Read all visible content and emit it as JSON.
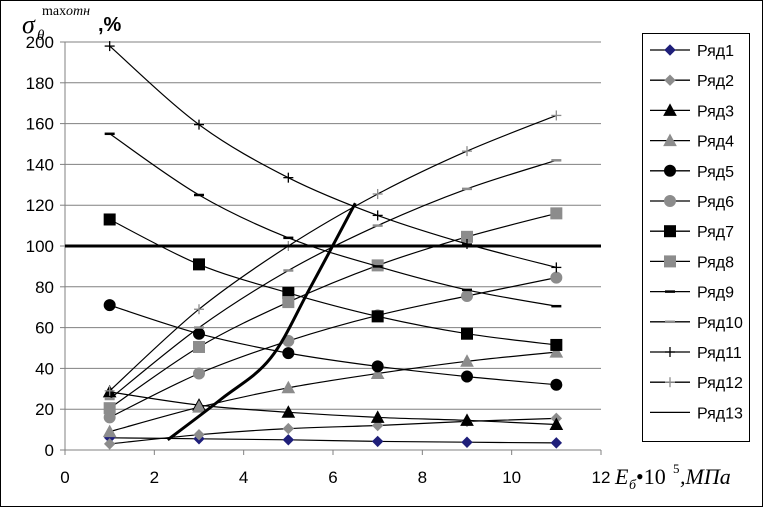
{
  "chart_data": {
    "type": "line",
    "ylabel": {
      "symbol": "σ",
      "subscript": "θ",
      "superscript_upright": "max",
      "superscript_italic": "отн",
      "unit": ",%"
    },
    "xlabel": {
      "symbol": "E",
      "subscript": "б",
      "multiplier": "•10",
      "exponent": "5",
      "unit": ",МПа"
    },
    "xlim": [
      0,
      12
    ],
    "ylim": [
      0,
      200
    ],
    "x_ticks": [
      "0",
      "2",
      "4",
      "6",
      "8",
      "10",
      "12"
    ],
    "y_ticks": [
      "0",
      "20",
      "40",
      "60",
      "80",
      "100",
      "120",
      "140",
      "160",
      "180",
      "200"
    ],
    "grid": "horizontal",
    "legend_position": "right",
    "reference_line": {
      "y": 100
    },
    "series": [
      {
        "name": "Ряд1",
        "marker": "diamond",
        "color": "#1f1f7a",
        "x": [
          1,
          3,
          5,
          7,
          9,
          11
        ],
        "values": [
          6,
          5.5,
          5,
          4.2,
          3.8,
          3.5
        ]
      },
      {
        "name": "Ряд2",
        "marker": "diamond",
        "color": "#8c8c8c",
        "x": [
          1,
          3,
          5,
          7,
          9,
          11
        ],
        "values": [
          3,
          7.5,
          10.5,
          12,
          14,
          15.5
        ]
      },
      {
        "name": "Ряд3",
        "marker": "triangle",
        "color": "#000000",
        "x": [
          1,
          3,
          5,
          7,
          9,
          11
        ],
        "values": [
          28.5,
          22,
          18.5,
          16,
          14.5,
          12.5
        ]
      },
      {
        "name": "Ряд4",
        "marker": "triangle",
        "color": "#8c8c8c",
        "x": [
          1,
          3,
          5,
          7,
          9,
          11
        ],
        "values": [
          9,
          21,
          30.5,
          37.5,
          43.5,
          48
        ]
      },
      {
        "name": "Ряд5",
        "marker": "circle",
        "color": "#000000",
        "x": [
          1,
          3,
          5,
          7,
          9,
          11
        ],
        "values": [
          71,
          57,
          47.5,
          41,
          36,
          32
        ]
      },
      {
        "name": "Ряд6",
        "marker": "circle",
        "color": "#8c8c8c",
        "x": [
          1,
          3,
          5,
          7,
          9,
          11
        ],
        "values": [
          16,
          37.5,
          53.5,
          66,
          75.5,
          84.5
        ]
      },
      {
        "name": "Ряд7",
        "marker": "square",
        "color": "#000000",
        "x": [
          1,
          3,
          5,
          7,
          9,
          11
        ],
        "values": [
          113,
          91,
          77,
          65.5,
          57,
          51.5
        ]
      },
      {
        "name": "Ряд8",
        "marker": "square",
        "color": "#8c8c8c",
        "x": [
          1,
          3,
          5,
          7,
          9,
          11
        ],
        "values": [
          20.5,
          50.5,
          72.5,
          90.5,
          104.5,
          116
        ]
      },
      {
        "name": "Ряд9",
        "marker": "dash",
        "color": "#000000",
        "x": [
          1,
          3,
          5,
          7,
          9,
          11
        ],
        "values": [
          155,
          125,
          104,
          90,
          78.5,
          70.5
        ]
      },
      {
        "name": "Ряд10",
        "marker": "dash",
        "color": "#8c8c8c",
        "x": [
          1,
          3,
          5,
          7,
          9,
          11
        ],
        "values": [
          25,
          60,
          88,
          110,
          128,
          142
        ]
      },
      {
        "name": "Ряд11",
        "marker": "plus",
        "color": "#000000",
        "x": [
          1,
          3,
          5,
          7,
          9,
          11
        ],
        "values": [
          198,
          159.5,
          133.5,
          115,
          101,
          89.5
        ]
      },
      {
        "name": "Ряд12",
        "marker": "plus",
        "color": "#8c8c8c",
        "x": [
          1,
          3,
          5,
          7,
          9,
          11
        ],
        "values": [
          29,
          69,
          100,
          125.5,
          146.5,
          164
        ]
      },
      {
        "name": "Ряд13",
        "marker": "none",
        "color": "#000000",
        "x": [
          2.3,
          3.5,
          4.6,
          5.5,
          6.5
        ],
        "values": [
          5,
          25,
          45,
          80,
          121
        ]
      }
    ]
  }
}
